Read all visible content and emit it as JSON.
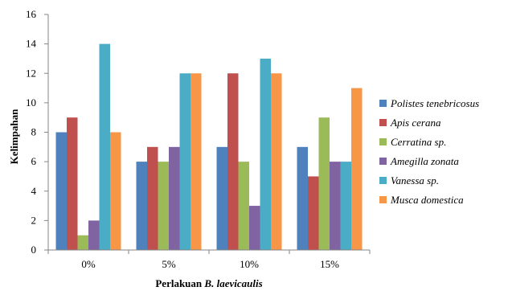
{
  "chart_data": {
    "type": "bar",
    "title": "",
    "xlabel_plain": "Perlakuan ",
    "xlabel_italic": "B. laevicaulis",
    "ylabel": "Kelimpahan",
    "ylim": [
      0,
      16
    ],
    "yticks": [
      "0",
      "2",
      "4",
      "6",
      "8",
      "10",
      "12",
      "14",
      "16"
    ],
    "categories": [
      "0%",
      "5%",
      "10%",
      "15%"
    ],
    "legend_position": "right",
    "grid": false,
    "series": [
      {
        "name": "Polistes tenebricosus",
        "color": "#4f81bd",
        "values": [
          8,
          6,
          7,
          7
        ]
      },
      {
        "name": "Apis cerana",
        "color": "#c0504d",
        "values": [
          9,
          7,
          12,
          5
        ]
      },
      {
        "name": "Cerratina sp.",
        "color": "#9bbb59",
        "values": [
          1,
          6,
          6,
          9
        ]
      },
      {
        "name": "Amegilla zonata",
        "color": "#8064a2",
        "values": [
          2,
          7,
          3,
          6
        ]
      },
      {
        "name": "Vanessa sp.",
        "color": "#4bacc6",
        "values": [
          14,
          12,
          13,
          6
        ]
      },
      {
        "name": "Musca domestica",
        "color": "#f79646",
        "values": [
          8,
          12,
          12,
          11
        ]
      }
    ]
  }
}
